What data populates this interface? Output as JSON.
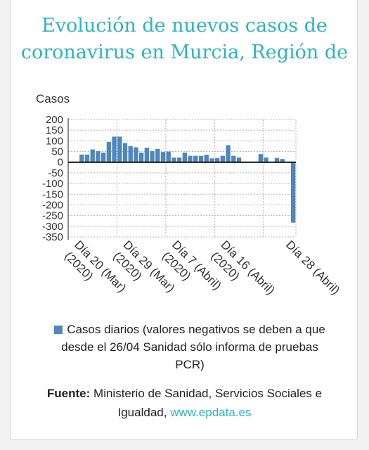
{
  "title_line1": "Evolución de nuevos casos de",
  "title_line2": "coronavirus en Murcia, Región de",
  "legend_label": "Casos diarios (valores negativos se deben a que desde el 26/04 Sanidad sólo informa de pruebas PCR)",
  "source_prefix": "Fuente:",
  "source_text": "Ministerio de Sanidad, Servicios Sociales e Igualdad,",
  "source_link": "www.epdata.es",
  "colors": {
    "title": "#2bb3c4",
    "bar": "#4f86bd",
    "link": "#2bb3c4"
  },
  "chart_data": {
    "type": "bar",
    "ylabel": "Casos",
    "ylim": [
      -350,
      200
    ],
    "yticks": [
      200,
      150,
      100,
      50,
      0,
      -50,
      -100,
      -150,
      -200,
      -250,
      -300,
      -350
    ],
    "grid": true,
    "x_tick_labels": [
      [
        "Día 20 (Mar)",
        "(2020)"
      ],
      [
        "Día 29 (Mar)",
        "(2020)"
      ],
      [
        "Día 7 (Abril)",
        "(2020)"
      ],
      [
        "Día 16 (Abril)",
        "(2020)"
      ],
      [
        "Día 28 (Abril)",
        ""
      ]
    ],
    "series": [
      {
        "name": "Casos diarios (valores negativos se deben a que desde el 26/04 Sanidad sólo informa de pruebas PCR)",
        "values": [
          0,
          0,
          36,
          36,
          60,
          52,
          45,
          95,
          120,
          120,
          90,
          75,
          70,
          45,
          68,
          52,
          62,
          48,
          50,
          22,
          22,
          45,
          30,
          30,
          30,
          35,
          18,
          20,
          30,
          80,
          30,
          22,
          0,
          0,
          0,
          38,
          22,
          0,
          20,
          15,
          0,
          -283
        ]
      }
    ]
  }
}
